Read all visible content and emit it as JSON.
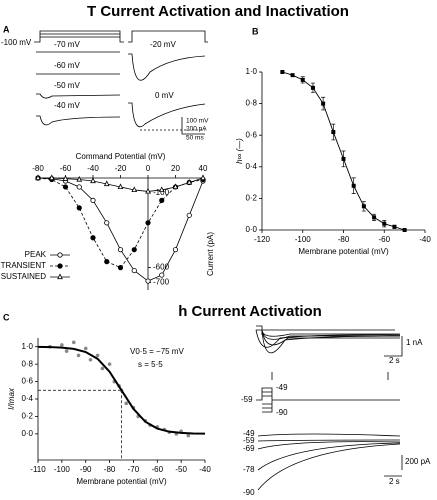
{
  "figure": {
    "title_top": "T Current Activation and Inactivation",
    "title_bottom": "h Current Activation",
    "panel_a": {
      "letter": "A",
      "holding": "-100 mV",
      "trace_labels": [
        "-70 mV",
        "-60 mV",
        "-50 mV",
        "-40 mV",
        "-20 mV",
        "0 mV"
      ],
      "scale_labels": [
        "100 mV",
        "200 pA",
        "50 ms"
      ]
    },
    "panel_b": {
      "letter": "B"
    },
    "panel_c": {
      "letter": "C",
      "annotations": [
        "V0·5 = −75 mV",
        "s = 5·5"
      ]
    },
    "panel_d": {
      "top_scale": [
        "1 nA",
        "2 s"
      ],
      "protocol_labels": [
        "-49",
        "-59",
        "-90"
      ],
      "bottom_labels": [
        "-49",
        "-59",
        "-69",
        "-78",
        "-90"
      ],
      "bottom_scale": [
        "200 pA",
        "2 s"
      ]
    }
  },
  "chart_data": [
    {
      "type": "line",
      "xlabel": "Command Potential (mV)",
      "ylabel": "Current (pA)",
      "x": [
        -80,
        -70,
        -60,
        -50,
        -40,
        -30,
        -20,
        -10,
        0,
        10,
        20,
        30,
        40
      ],
      "series": [
        {
          "name": "PEAK",
          "color": "#000000",
          "marker": "open-circle",
          "dash": false,
          "values": [
            0,
            -5,
            -20,
            -60,
            -150,
            -300,
            -480,
            -620,
            -690,
            -650,
            -480,
            -250,
            -20
          ]
        },
        {
          "name": "TRANSIENT",
          "color": "#000000",
          "marker": "filled-circle",
          "dash": true,
          "values": [
            0,
            -10,
            -60,
            -200,
            -400,
            -560,
            -600,
            -480,
            -300,
            -150,
            -60,
            -30,
            -10
          ]
        },
        {
          "name": "SUSTAINED",
          "color": "#000000",
          "marker": "triangle",
          "dash": false,
          "values": [
            0,
            0,
            -5,
            -10,
            -20,
            -40,
            -60,
            -80,
            -90,
            -80,
            -60,
            -30,
            0
          ]
        }
      ],
      "xlim": [
        -80,
        40
      ],
      "xticks": [
        -80,
        -60,
        -40,
        -20,
        0,
        20,
        40
      ],
      "ylim": [
        -750,
        0
      ],
      "yticks": [
        -100,
        -600,
        -700
      ],
      "legend": "lower left"
    },
    {
      "type": "errorline",
      "ylabel": "h∞ (—)",
      "xlabel": "Membrane potential (mV)",
      "x": [
        -110,
        -105,
        -100,
        -95,
        -90,
        -85,
        -80,
        -75,
        -70,
        -65,
        -60,
        -55,
        -50
      ],
      "values": [
        1.0,
        0.98,
        0.95,
        0.9,
        0.8,
        0.62,
        0.45,
        0.28,
        0.15,
        0.08,
        0.04,
        0.02,
        0.0
      ],
      "errors": [
        0,
        0,
        0.02,
        0.03,
        0.04,
        0.05,
        0.05,
        0.05,
        0.03,
        0.02,
        0.02,
        0.01,
        0
      ],
      "color": "#000000",
      "xlim": [
        -120,
        -40
      ],
      "xticks": [
        -120,
        -100,
        -80,
        -60,
        -40
      ],
      "ylim": [
        0,
        1
      ],
      "yticks": [
        {
          "value": 0,
          "label": "0·0"
        },
        {
          "value": 0.2,
          "label": "0·2"
        },
        {
          "value": 0.4,
          "label": "0·4"
        },
        {
          "value": 0.6,
          "label": "0·6"
        },
        {
          "value": 0.8,
          "label": "0·8"
        },
        {
          "value": 1,
          "label": "1·0"
        }
      ]
    },
    {
      "type": "scatterfit",
      "ylabel": "I/Imax",
      "xlabel": "Membrane potential (mV)",
      "color": "#000000",
      "point_color": "#888888",
      "points": {
        "x": [
          -105,
          -100,
          -98,
          -95,
          -93,
          -90,
          -88,
          -85,
          -83,
          -80,
          -78,
          -76,
          -75,
          -73,
          -70,
          -68,
          -65,
          -63,
          -60,
          -57,
          -55,
          -52,
          -50,
          -47
        ],
        "y": [
          1.0,
          1.02,
          0.95,
          1.05,
          0.9,
          0.98,
          0.85,
          0.9,
          0.75,
          0.8,
          0.6,
          0.55,
          0.5,
          0.35,
          0.3,
          0.2,
          0.15,
          0.1,
          0.08,
          0.05,
          0.02,
          0.0,
          0.03,
          -0.02
        ]
      },
      "curve": {
        "x": [
          -110,
          -105,
          -100,
          -95,
          -90,
          -85,
          -80,
          -75,
          -70,
          -65,
          -60,
          -55,
          -50,
          -45,
          -40
        ],
        "y": [
          0.998,
          0.996,
          0.99,
          0.975,
          0.939,
          0.861,
          0.713,
          0.5,
          0.287,
          0.139,
          0.061,
          0.025,
          0.011,
          0.004,
          0.002
        ]
      },
      "ref": {
        "x": -75,
        "y": 0.5
      },
      "xlim": [
        -110,
        -40
      ],
      "xticks": [
        -110,
        -100,
        -90,
        -80,
        -70,
        -60,
        -50,
        -40
      ],
      "ylim": [
        -0.3,
        1.1
      ],
      "yticks": [
        {
          "value": 0,
          "label": "0·0"
        },
        {
          "value": 0.2,
          "label": "0·2"
        },
        {
          "value": 0.4,
          "label": "0·4"
        },
        {
          "value": 0.6,
          "label": "0·6"
        },
        {
          "value": 0.8,
          "label": "0·8"
        },
        {
          "value": 1,
          "label": "1·0"
        }
      ]
    }
  ]
}
